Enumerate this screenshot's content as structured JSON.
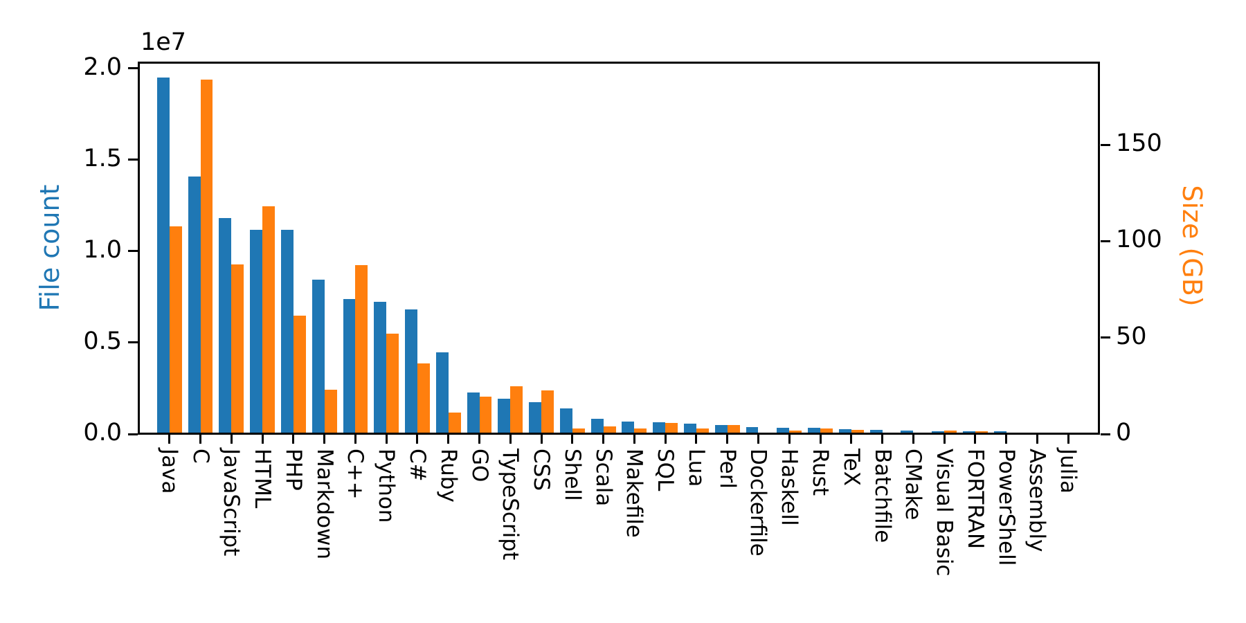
{
  "chart_data": {
    "type": "bar",
    "title": "",
    "grid": false,
    "legend": false,
    "categories": [
      "Java",
      "C",
      "JavaScript",
      "HTML",
      "PHP",
      "Markdown",
      "C++",
      "Python",
      "C#",
      "Ruby",
      "GO",
      "TypeScript",
      "CSS",
      "Shell",
      "Scala",
      "Makefile",
      "SQL",
      "Lua",
      "Perl",
      "Dockerfile",
      "Haskell",
      "Rust",
      "TeX",
      "Batchfile",
      "CMake",
      "Visual Basic",
      "FORTRAN",
      "PowerShell",
      "Assembly",
      "Julia"
    ],
    "series": [
      {
        "name": "File count",
        "axis": "left",
        "color": "#1f77b4",
        "values": [
          19500000,
          14100000,
          11800000,
          11180000,
          11170000,
          8460000,
          7380000,
          7230000,
          6810000,
          4470000,
          2270000,
          1940000,
          1730000,
          1390000,
          836000,
          679000,
          657000,
          579000,
          498000,
          367000,
          340000,
          322000,
          251000,
          237000,
          175000,
          156000,
          142000,
          137000,
          83000,
          58000
        ]
      },
      {
        "name": "Size (GB)",
        "axis": "right",
        "color": "#ff7f0e",
        "values": [
          107.7,
          183.8,
          87.8,
          118.1,
          61.4,
          23.1,
          87.7,
          52.0,
          36.8,
          11.0,
          19.3,
          24.6,
          22.7,
          3.0,
          3.9,
          2.9,
          5.7,
          2.8,
          4.7,
          0.7,
          1.9,
          2.7,
          2.2,
          0.7,
          0.5,
          1.9,
          1.6,
          0.7,
          0.8,
          0.3
        ]
      }
    ],
    "left_axis": {
      "label": "File count",
      "color": "#1f77b4",
      "offset_text": "1e7",
      "tick_labels": [
        "0.0",
        "0.5",
        "1.0",
        "1.5",
        "2.0"
      ],
      "tick_values": [
        0,
        5000000,
        10000000,
        15000000,
        20000000
      ],
      "max": 20340000
    },
    "right_axis": {
      "label": "Size (GB)",
      "color": "#ff7f0e",
      "tick_labels": [
        "0",
        "50",
        "100",
        "150"
      ],
      "tick_values": [
        0,
        50,
        100,
        150
      ],
      "max": 192.8
    }
  }
}
